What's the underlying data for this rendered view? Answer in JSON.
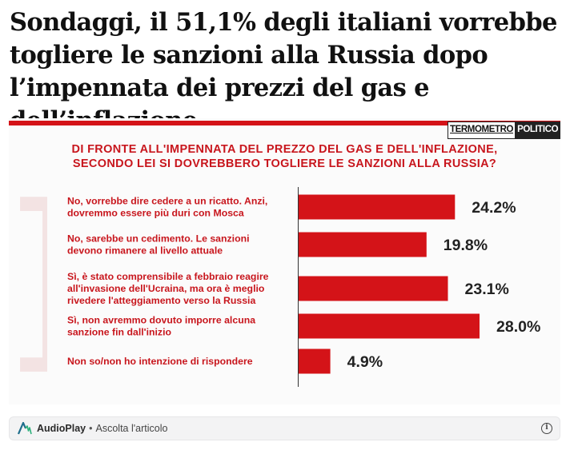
{
  "article": {
    "headline_lines": [
      "Sondaggi, il 51,1% degli italiani vorrebbe",
      "togliere le sanzioni alla Russia dopo",
      "l’impennata dei prezzi del gas e dell’inflazione"
    ]
  },
  "logo": {
    "part1": "TERMOMETRO",
    "part2": "POLITICO"
  },
  "colors": {
    "accent": "#d41318",
    "bar": "#d41318",
    "text_red": "#c8161d"
  },
  "chart_data": {
    "type": "bar",
    "orientation": "horizontal",
    "title_lines": [
      "DI FRONTE ALL'IMPENNATA DEL PREZZO DEL GAS E DELL'INFLAZIONE,",
      "SECONDO LEI SI DOVREBBERO TOGLIERE LE SANZIONI ALLA RUSSIA?"
    ],
    "categories": [
      [
        "No, vorrebbe dire cedere a un ricatto. Anzi,",
        "dovremmo essere più duri con Mosca"
      ],
      [
        "No, sarebbe un cedimento. Le sanzioni",
        "devono rimanere al livello attuale"
      ],
      [
        "Sì, è stato comprensibile a febbraio reagire",
        "all'invasione dell'Ucraina, ma ora è meglio",
        "rivedere l'atteggiamento verso la Russia"
      ],
      [
        "Sì, non avremmo dovuto imporre alcuna",
        "sanzione fin dall'inizio"
      ],
      [
        "Non so/non ho intenzione di rispondere"
      ]
    ],
    "values": [
      24.2,
      19.8,
      23.1,
      28.0,
      4.9
    ],
    "value_labels": [
      "24.2%",
      "19.8%",
      "23.1%",
      "28.0%",
      "4.9%"
    ],
    "unit": "%",
    "xlim": [
      0,
      30
    ]
  },
  "audioplay": {
    "brand": "AudioPlay",
    "separator": "•",
    "label": "Ascolta l'articolo",
    "info_icon": "i"
  }
}
